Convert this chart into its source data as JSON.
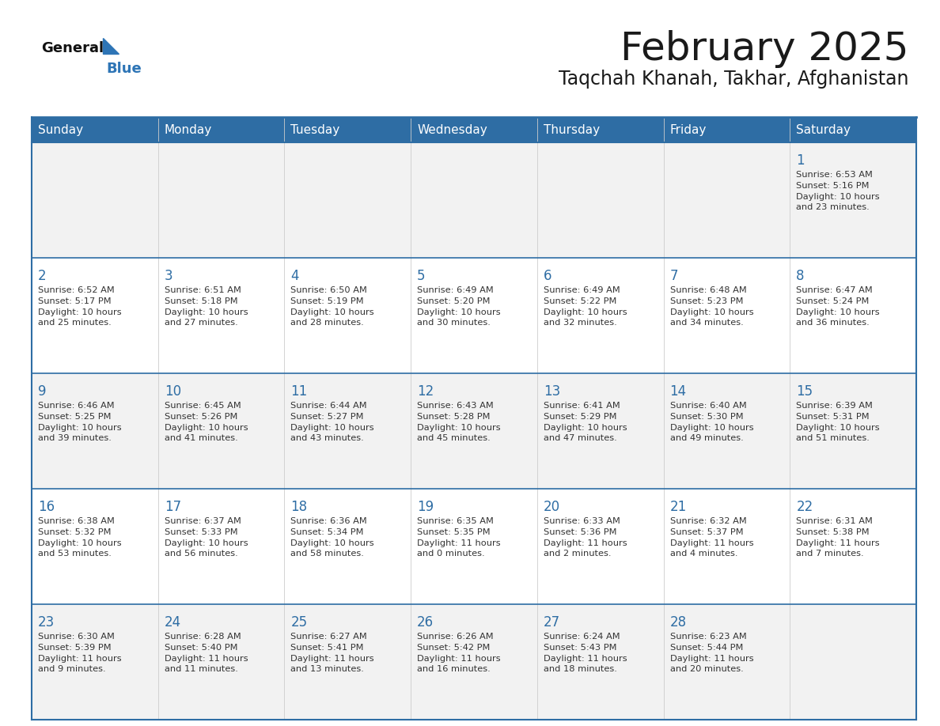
{
  "title": "February 2025",
  "subtitle": "Taqchah Khanah, Takhar, Afghanistan",
  "days_of_week": [
    "Sunday",
    "Monday",
    "Tuesday",
    "Wednesday",
    "Thursday",
    "Friday",
    "Saturday"
  ],
  "header_bg": "#2E6DA4",
  "header_text": "#FFFFFF",
  "cell_bg_odd": "#F2F2F2",
  "cell_bg_even": "#FFFFFF",
  "cell_border": "#2E6DA4",
  "title_color": "#1a1a1a",
  "subtitle_color": "#1a1a1a",
  "day_number_color": "#2E6DA4",
  "cell_text_color": "#333333",
  "logo_general_color": "#111111",
  "logo_blue_color": "#2E75B6",
  "calendar_data": [
    [
      null,
      null,
      null,
      null,
      null,
      null,
      {
        "day": "1",
        "sunrise": "6:53 AM",
        "sunset": "5:16 PM",
        "daylight_h": "10 hours",
        "daylight_m": "and 23 minutes."
      }
    ],
    [
      {
        "day": "2",
        "sunrise": "6:52 AM",
        "sunset": "5:17 PM",
        "daylight_h": "10 hours",
        "daylight_m": "and 25 minutes."
      },
      {
        "day": "3",
        "sunrise": "6:51 AM",
        "sunset": "5:18 PM",
        "daylight_h": "10 hours",
        "daylight_m": "and 27 minutes."
      },
      {
        "day": "4",
        "sunrise": "6:50 AM",
        "sunset": "5:19 PM",
        "daylight_h": "10 hours",
        "daylight_m": "and 28 minutes."
      },
      {
        "day": "5",
        "sunrise": "6:49 AM",
        "sunset": "5:20 PM",
        "daylight_h": "10 hours",
        "daylight_m": "and 30 minutes."
      },
      {
        "day": "6",
        "sunrise": "6:49 AM",
        "sunset": "5:22 PM",
        "daylight_h": "10 hours",
        "daylight_m": "and 32 minutes."
      },
      {
        "day": "7",
        "sunrise": "6:48 AM",
        "sunset": "5:23 PM",
        "daylight_h": "10 hours",
        "daylight_m": "and 34 minutes."
      },
      {
        "day": "8",
        "sunrise": "6:47 AM",
        "sunset": "5:24 PM",
        "daylight_h": "10 hours",
        "daylight_m": "and 36 minutes."
      }
    ],
    [
      {
        "day": "9",
        "sunrise": "6:46 AM",
        "sunset": "5:25 PM",
        "daylight_h": "10 hours",
        "daylight_m": "and 39 minutes."
      },
      {
        "day": "10",
        "sunrise": "6:45 AM",
        "sunset": "5:26 PM",
        "daylight_h": "10 hours",
        "daylight_m": "and 41 minutes."
      },
      {
        "day": "11",
        "sunrise": "6:44 AM",
        "sunset": "5:27 PM",
        "daylight_h": "10 hours",
        "daylight_m": "and 43 minutes."
      },
      {
        "day": "12",
        "sunrise": "6:43 AM",
        "sunset": "5:28 PM",
        "daylight_h": "10 hours",
        "daylight_m": "and 45 minutes."
      },
      {
        "day": "13",
        "sunrise": "6:41 AM",
        "sunset": "5:29 PM",
        "daylight_h": "10 hours",
        "daylight_m": "and 47 minutes."
      },
      {
        "day": "14",
        "sunrise": "6:40 AM",
        "sunset": "5:30 PM",
        "daylight_h": "10 hours",
        "daylight_m": "and 49 minutes."
      },
      {
        "day": "15",
        "sunrise": "6:39 AM",
        "sunset": "5:31 PM",
        "daylight_h": "10 hours",
        "daylight_m": "and 51 minutes."
      }
    ],
    [
      {
        "day": "16",
        "sunrise": "6:38 AM",
        "sunset": "5:32 PM",
        "daylight_h": "10 hours",
        "daylight_m": "and 53 minutes."
      },
      {
        "day": "17",
        "sunrise": "6:37 AM",
        "sunset": "5:33 PM",
        "daylight_h": "10 hours",
        "daylight_m": "and 56 minutes."
      },
      {
        "day": "18",
        "sunrise": "6:36 AM",
        "sunset": "5:34 PM",
        "daylight_h": "10 hours",
        "daylight_m": "and 58 minutes."
      },
      {
        "day": "19",
        "sunrise": "6:35 AM",
        "sunset": "5:35 PM",
        "daylight_h": "11 hours",
        "daylight_m": "and 0 minutes."
      },
      {
        "day": "20",
        "sunrise": "6:33 AM",
        "sunset": "5:36 PM",
        "daylight_h": "11 hours",
        "daylight_m": "and 2 minutes."
      },
      {
        "day": "21",
        "sunrise": "6:32 AM",
        "sunset": "5:37 PM",
        "daylight_h": "11 hours",
        "daylight_m": "and 4 minutes."
      },
      {
        "day": "22",
        "sunrise": "6:31 AM",
        "sunset": "5:38 PM",
        "daylight_h": "11 hours",
        "daylight_m": "and 7 minutes."
      }
    ],
    [
      {
        "day": "23",
        "sunrise": "6:30 AM",
        "sunset": "5:39 PM",
        "daylight_h": "11 hours",
        "daylight_m": "and 9 minutes."
      },
      {
        "day": "24",
        "sunrise": "6:28 AM",
        "sunset": "5:40 PM",
        "daylight_h": "11 hours",
        "daylight_m": "and 11 minutes."
      },
      {
        "day": "25",
        "sunrise": "6:27 AM",
        "sunset": "5:41 PM",
        "daylight_h": "11 hours",
        "daylight_m": "and 13 minutes."
      },
      {
        "day": "26",
        "sunrise": "6:26 AM",
        "sunset": "5:42 PM",
        "daylight_h": "11 hours",
        "daylight_m": "and 16 minutes."
      },
      {
        "day": "27",
        "sunrise": "6:24 AM",
        "sunset": "5:43 PM",
        "daylight_h": "11 hours",
        "daylight_m": "and 18 minutes."
      },
      {
        "day": "28",
        "sunrise": "6:23 AM",
        "sunset": "5:44 PM",
        "daylight_h": "11 hours",
        "daylight_m": "and 20 minutes."
      },
      null
    ]
  ]
}
